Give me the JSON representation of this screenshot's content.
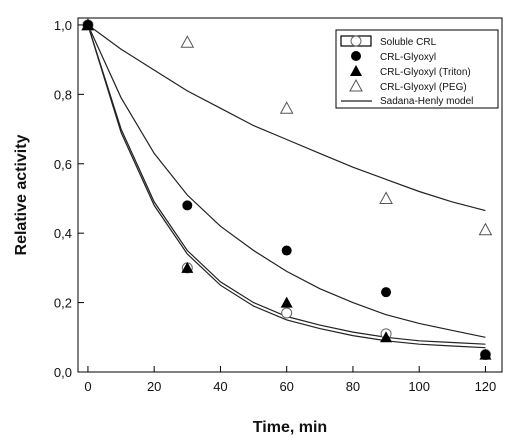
{
  "chart_data": {
    "type": "scatter",
    "xlabel": "Time, min",
    "ylabel": "Relative activity",
    "xlim": [
      -3,
      125
    ],
    "ylim": [
      0,
      1.02
    ],
    "xticks": [
      0,
      20,
      40,
      60,
      80,
      100,
      120
    ],
    "yticks": [
      0,
      0.2,
      0.4,
      0.6,
      0.8,
      1.0
    ],
    "xtick_labels": [
      "0",
      "20",
      "40",
      "60",
      "80",
      "100",
      "120"
    ],
    "ytick_labels": [
      "0,0",
      "0,2",
      "0,4",
      "0,6",
      "0,8",
      "1,0"
    ],
    "legend_position": "top-right",
    "series": [
      {
        "name": "Soluble CRL",
        "marker": "open-circle",
        "x": [
          0,
          30,
          60,
          90,
          120
        ],
        "y": [
          1.0,
          0.3,
          0.17,
          0.11,
          0.05
        ]
      },
      {
        "name": "CRL-Glyoxyl",
        "marker": "filled-circle",
        "x": [
          0,
          30,
          60,
          90,
          120
        ],
        "y": [
          1.0,
          0.48,
          0.35,
          0.23,
          0.05
        ]
      },
      {
        "name": "CRL-Glyoxyl (Triton)",
        "marker": "filled-triangle",
        "x": [
          0,
          30,
          60,
          90,
          120
        ],
        "y": [
          1.0,
          0.3,
          0.2,
          0.1,
          0.05
        ]
      },
      {
        "name": "CRL-Glyoxyl (PEG)",
        "marker": "open-triangle",
        "x": [
          0,
          30,
          60,
          90,
          120
        ],
        "y": [
          1.0,
          0.95,
          0.76,
          0.5,
          0.41
        ]
      }
    ],
    "model": {
      "name": "Sadana-Henly model",
      "curves": [
        {
          "x": [
            0,
            10,
            20,
            30,
            40,
            50,
            60,
            70,
            80,
            90,
            100,
            110,
            120
          ],
          "y": [
            1.0,
            0.93,
            0.87,
            0.81,
            0.76,
            0.71,
            0.67,
            0.63,
            0.59,
            0.555,
            0.52,
            0.49,
            0.465
          ]
        },
        {
          "x": [
            0,
            10,
            20,
            30,
            40,
            50,
            60,
            70,
            80,
            90,
            100,
            110,
            120
          ],
          "y": [
            1.0,
            0.79,
            0.63,
            0.51,
            0.42,
            0.35,
            0.29,
            0.24,
            0.2,
            0.165,
            0.14,
            0.12,
            0.1
          ]
        },
        {
          "x": [
            0,
            10,
            20,
            30,
            40,
            50,
            60,
            70,
            80,
            90,
            100,
            110,
            120
          ],
          "y": [
            1.0,
            0.69,
            0.48,
            0.34,
            0.25,
            0.19,
            0.15,
            0.125,
            0.105,
            0.09,
            0.08,
            0.075,
            0.07
          ]
        },
        {
          "x": [
            0,
            10,
            20,
            30,
            40,
            50,
            60,
            70,
            80,
            90,
            100,
            110,
            120
          ],
          "y": [
            1.0,
            0.7,
            0.49,
            0.35,
            0.26,
            0.2,
            0.16,
            0.135,
            0.115,
            0.1,
            0.09,
            0.085,
            0.08
          ]
        }
      ]
    }
  }
}
